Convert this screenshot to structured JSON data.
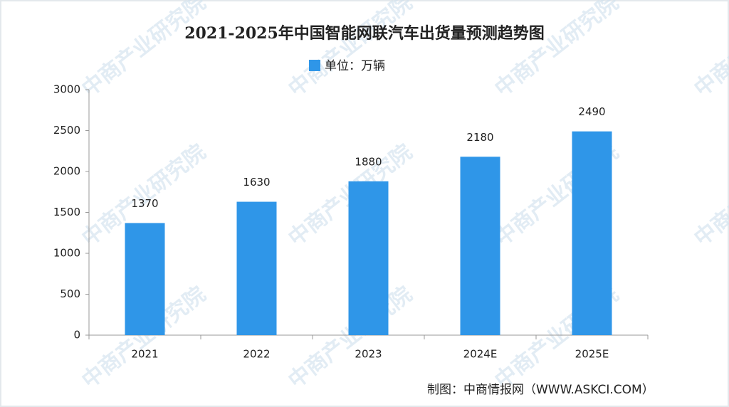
{
  "chart_data": {
    "type": "bar",
    "title": "2021-2025年中国智能网联汽车出货量预测趋势图",
    "categories": [
      "2021",
      "2022",
      "2023",
      "2024E",
      "2025E"
    ],
    "series": [
      {
        "name": "单位：万辆",
        "color": "#2f96e8",
        "values": [
          1370,
          1630,
          1880,
          2180,
          2490
        ]
      }
    ],
    "ylim": [
      0,
      3000
    ],
    "yticks": [
      0,
      500,
      1000,
      1500,
      2000,
      2500,
      3000
    ],
    "source": "制图：中商情报网（WWW.ASKCI.COM）",
    "watermark": "中商产业研究院"
  }
}
